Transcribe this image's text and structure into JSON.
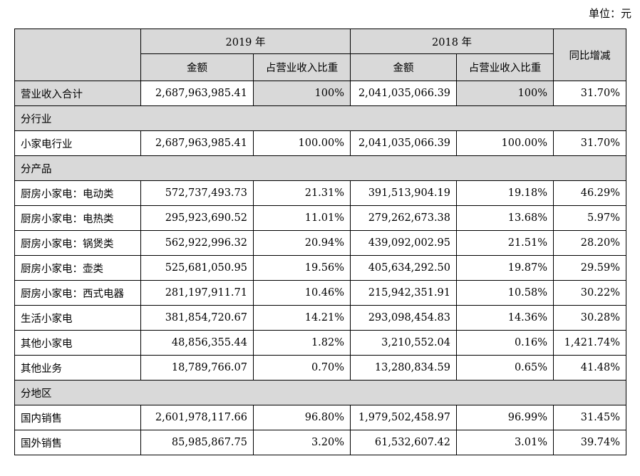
{
  "unit": "单位：元",
  "table": {
    "header": {
      "year_2019": "2019 年",
      "year_2018": "2018 年",
      "yoy": "同比增减",
      "amount_2019": "金额",
      "share_2019": "占营业收入比重",
      "amount_2018": "金额",
      "share_2018": "占营业收入比重"
    },
    "rows": [
      [
        "营业收入合计",
        "2,687,963,985.41",
        "100%",
        "2,041,035,066.39",
        "100%",
        "31.70%"
      ],
      [
        "分行业"
      ],
      [
        "小家电行业",
        "2,687,963,985.41",
        "100.00%",
        "2,041,035,066.39",
        "100.00%",
        "31.70%"
      ],
      [
        "分产品"
      ],
      [
        "厨房小家电：电动类",
        "572,737,493.73",
        "21.31%",
        "391,513,904.19",
        "19.18%",
        "46.29%"
      ],
      [
        "厨房小家电：电热类",
        "295,923,690.52",
        "11.01%",
        "279,262,673.38",
        "13.68%",
        "5.97%"
      ],
      [
        "厨房小家电：锅煲类",
        "562,922,996.32",
        "20.94%",
        "439,092,002.95",
        "21.51%",
        "28.20%"
      ],
      [
        "厨房小家电：壶类",
        "525,681,050.95",
        "19.56%",
        "405,634,292.50",
        "19.87%",
        "29.59%"
      ],
      [
        "厨房小家电：西式电器",
        "281,197,911.71",
        "10.46%",
        "215,942,351.91",
        "10.58%",
        "30.22%"
      ],
      [
        "生活小家电",
        "381,854,720.67",
        "14.21%",
        "293,098,454.83",
        "14.36%",
        "30.28%"
      ],
      [
        "其他小家电",
        "48,856,355.44",
        "1.82%",
        "3,210,552.04",
        "0.16%",
        "1,421.74%"
      ],
      [
        "其他业务",
        "18,789,766.07",
        "0.70%",
        "13,280,834.59",
        "0.65%",
        "41.48%"
      ],
      [
        "分地区"
      ],
      [
        "国内销售",
        "2,601,978,117.66",
        "96.80%",
        "1,979,502,458.97",
        "96.99%",
        "31.45%"
      ],
      [
        "国外销售",
        "85,985,867.75",
        "3.20%",
        "61,532,607.42",
        "3.01%",
        "39.74%"
      ]
    ]
  }
}
